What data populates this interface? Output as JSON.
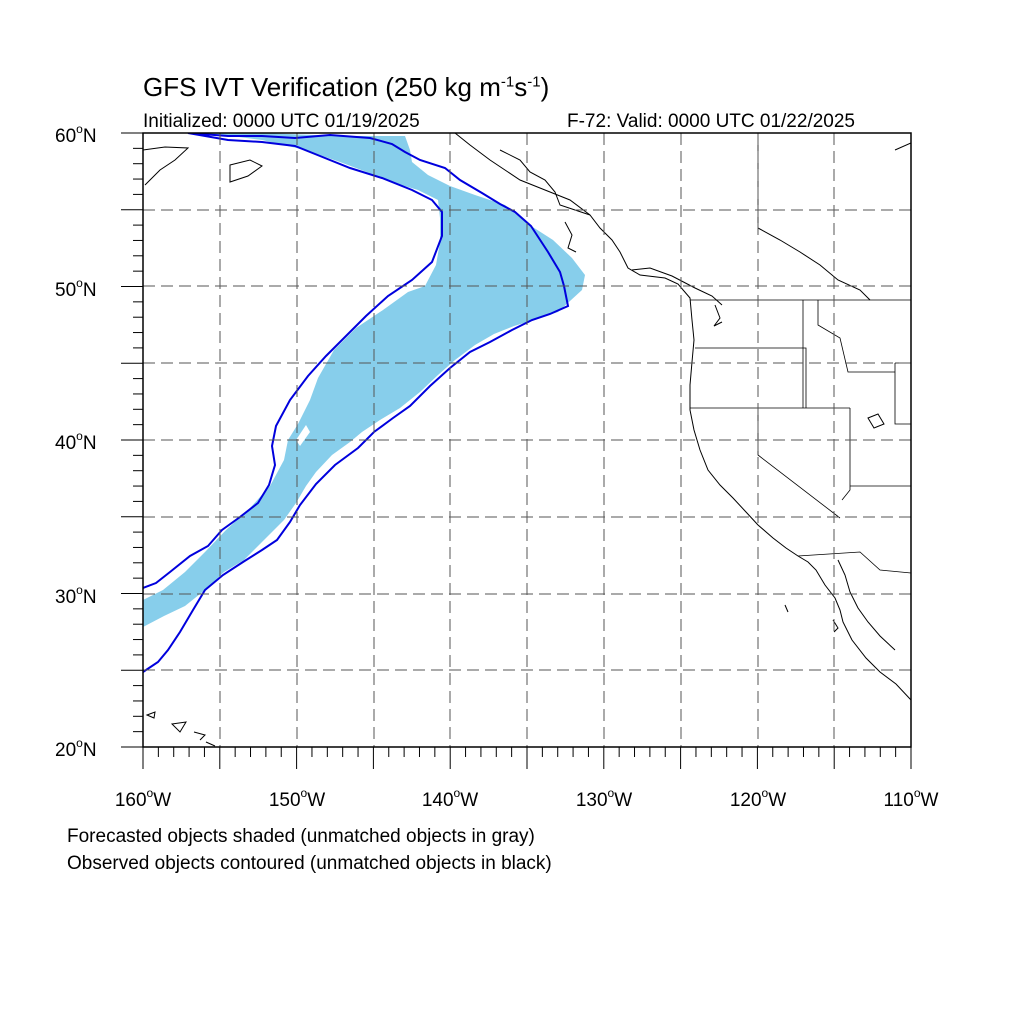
{
  "figure": {
    "title_main": "GFS IVT Verification (250 kg m",
    "title_exp1": "-1",
    "title_mid": "s",
    "title_exp2": "-1",
    "title_end": ")",
    "init_text": "Initialized: 0000 UTC 01/19/2025",
    "valid_text": "F-72: Valid: 0000 UTC 01/22/2025"
  },
  "axes": {
    "lat_labels": [
      "60",
      "50",
      "40",
      "30",
      "20"
    ],
    "lat_suffix": "N",
    "lon_labels": [
      "160",
      "150",
      "140",
      "130",
      "120",
      "110"
    ],
    "lon_suffix": "W",
    "deg_symbol": "o",
    "lon_range": [
      -160,
      -110
    ],
    "lat_range": [
      20,
      60
    ],
    "grid_spacing_deg": 5,
    "grid": "dashed"
  },
  "legend": {
    "line1": "Forecasted objects shaded (unmatched objects in gray)",
    "line2": "Observed objects contoured (unmatched objects in black)"
  },
  "colors": {
    "forecast_fill": "#87CEEB",
    "observed_contour": "#0000DD",
    "coastline": "#000000",
    "grid": "#555555"
  },
  "objects": {
    "forecast": {
      "shape": "atmospheric-river",
      "matched": true
    },
    "observed": {
      "shape": "atmospheric-river",
      "matched": true
    }
  }
}
